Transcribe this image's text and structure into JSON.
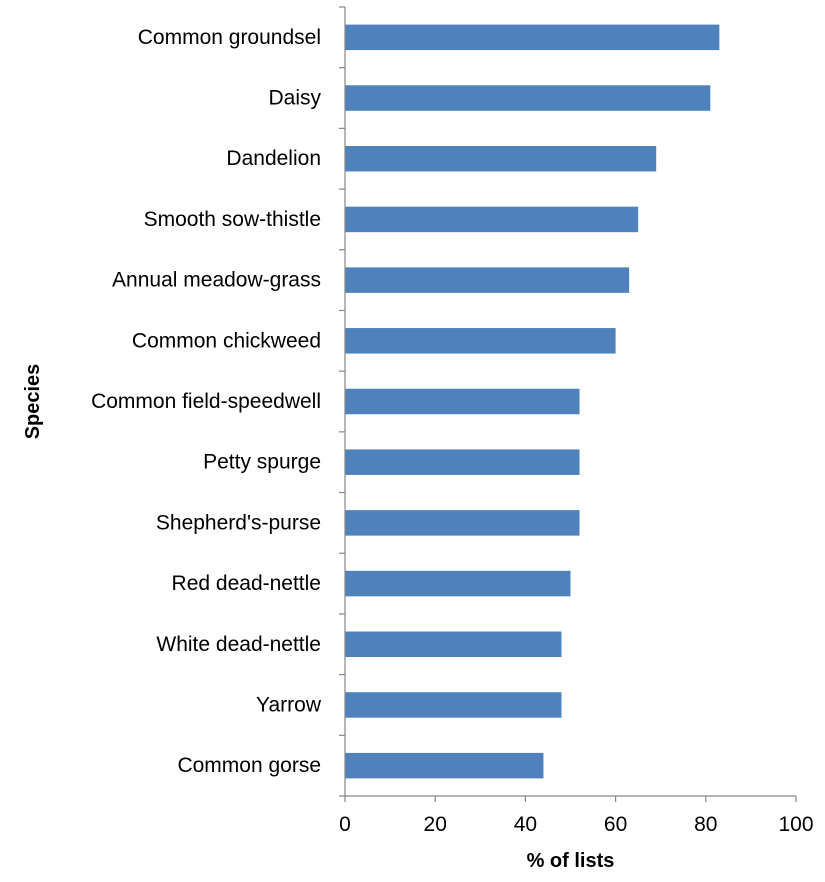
{
  "chart_data": {
    "type": "bar",
    "orientation": "horizontal",
    "categories": [
      "Common groundsel",
      "Daisy",
      "Dandelion",
      "Smooth sow-thistle",
      "Annual meadow-grass",
      "Common chickweed",
      "Common field-speedwell",
      "Petty spurge",
      "Shepherd's-purse",
      "Red dead-nettle",
      "White dead-nettle",
      "Yarrow",
      "Common gorse"
    ],
    "values": [
      83,
      81,
      69,
      65,
      63,
      60,
      52,
      52,
      52,
      50,
      48,
      48,
      44
    ],
    "title": "",
    "xlabel": "% of lists",
    "ylabel": "Species",
    "xlim": [
      0,
      100
    ],
    "xticks": [
      0,
      20,
      40,
      60,
      80,
      100
    ],
    "grid": false,
    "legend": "none",
    "colors": {
      "bar": "#4F81BD",
      "axis": "#868686",
      "text": "#000000"
    }
  }
}
